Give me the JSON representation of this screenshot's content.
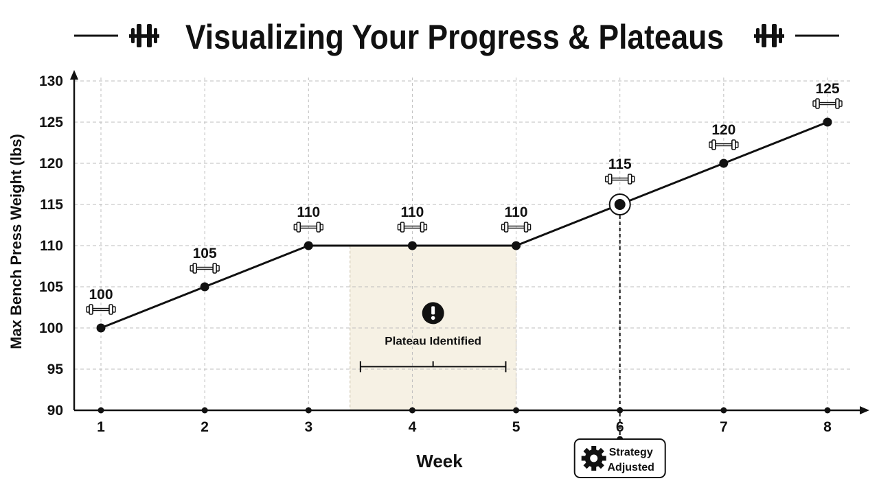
{
  "title": "Visualizing Your Progress & Plateaus",
  "icons": {
    "title_left": "barbell-icon",
    "title_right": "barbell-icon",
    "point_marker": "dumbbell-icon",
    "plateau": "exclamation-icon",
    "strategy": "gear-icon"
  },
  "colors": {
    "ink": "#111111",
    "grid": "#bdbdbd",
    "plateau_fill": "#f6f1e4"
  },
  "annotations": {
    "plateau_label": "Plateau Identified",
    "plateau_range": [
      3.5,
      4.9
    ],
    "plateau_shade": [
      3.4,
      5
    ],
    "strategy_line1": "Strategy",
    "strategy_line2": "Adjusted",
    "strategy_week": 6,
    "highlight_week": 6
  },
  "chart_data": {
    "type": "line",
    "title": "Visualizing Your Progress & Plateaus",
    "xlabel": "Week",
    "ylabel": "Max Bench Press Weight (lbs)",
    "x": [
      1,
      2,
      3,
      4,
      5,
      6,
      7,
      8
    ],
    "values": [
      100,
      105,
      110,
      110,
      110,
      115,
      120,
      125
    ],
    "data_labels": [
      "100",
      "105",
      "110",
      "110",
      "110",
      "115",
      "120",
      "125"
    ],
    "xlim": [
      1,
      8
    ],
    "ylim": [
      90,
      130
    ],
    "x_ticks": [
      "1",
      "2",
      "3",
      "4",
      "5",
      "6",
      "7",
      "8"
    ],
    "y_ticks": [
      "90",
      "95",
      "100",
      "105",
      "110",
      "115",
      "120",
      "125",
      "130"
    ],
    "grid": true
  }
}
